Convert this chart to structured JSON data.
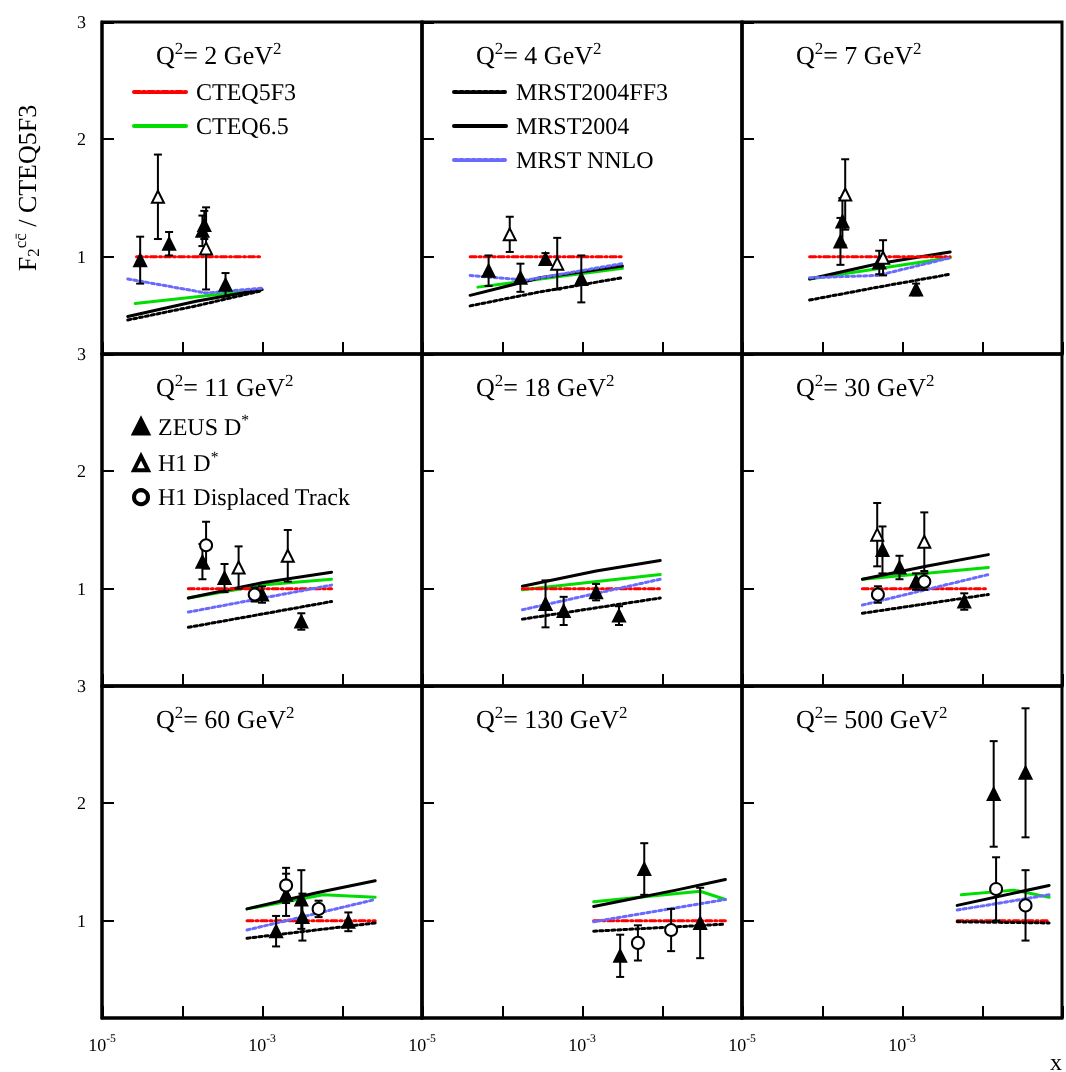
{
  "chart_data": [
    {
      "type": "line",
      "title": "Q$^{2}$= 2 GeV$^{2}$",
      "ylabel": "F$_{2}$$^{cc̄}$ / CTEQ5F3",
      "log": "x",
      "xlim": [
        1e-05,
        0.1
      ],
      "ylim": [
        0.17,
        3
      ],
      "xticks": [
        {
          "value": 1e-05,
          "label": null
        },
        {
          "value": 0.0001,
          "label": null
        },
        {
          "value": 0.001,
          "label": null
        },
        {
          "value": 0.01,
          "label": null
        },
        {
          "value": 0.1,
          "label": null
        }
      ],
      "yticks": [
        1,
        2,
        3
      ],
      "tick_labels": "y",
      "legend": "top left",
      "series": [
        {
          "name": "CTEQ5F3",
          "color": "#ff0000",
          "line_style": "dashed",
          "marker": "none",
          "x": [
            2.7e-05,
            0.001
          ],
          "values": [
            1,
            1
          ]
        },
        {
          "name": "CTEQ6.5",
          "color": "#00dd00",
          "line_style": "solid",
          "marker": "none",
          "x": [
            2.6e-05,
            0.001
          ],
          "values": [
            0.6,
            0.72
          ]
        },
        {
          "color": "#000000",
          "line_style": "dotted",
          "marker": "none",
          "x": [
            2.1e-05,
            0.00015,
            0.001
          ],
          "values": [
            0.46,
            0.58,
            0.71
          ]
        },
        {
          "color": "#000000",
          "line_style": "solid",
          "marker": "none",
          "x": [
            2.1e-05,
            0.00015,
            0.001
          ],
          "values": [
            0.49,
            0.62,
            0.72
          ]
        },
        {
          "color": "#6a6aff",
          "line_style": "dotted",
          "marker": "none",
          "x": [
            2.1e-05,
            0.0002,
            0.001
          ],
          "values": [
            0.81,
            0.69,
            0.73
          ]
        },
        {
          "type": "scatter",
          "color": "#000000",
          "marker": "triangle",
          "x": [
            3e-05,
            6.9e-05,
            0.00018,
            0.00019,
            0.00035
          ],
          "values": [
            0.97,
            1.11,
            1.22,
            1.27,
            0.76
          ],
          "errors": [
            0.2,
            0.1,
            0.13,
            0.12,
            0.1
          ]
        },
        {
          "type": "scatter",
          "color": "#ffffff",
          "marker": "triangle",
          "x": [
            5e-05,
            0.0002
          ],
          "values": [
            1.51,
            1.07
          ],
          "errors": [
            0.36,
            0.35
          ]
        }
      ]
    },
    {
      "type": "line",
      "title": "Q$^{2}$= 4 GeV$^{2}$",
      "log": "x",
      "xlim": [
        1e-05,
        0.1
      ],
      "ylim": [
        0.17,
        3
      ],
      "xticks": [
        {
          "value": 1e-05,
          "label": null
        },
        {
          "value": 0.0001,
          "label": null
        },
        {
          "value": 0.001,
          "label": null
        },
        {
          "value": 0.01,
          "label": null
        },
        {
          "value": 0.1,
          "label": null
        }
      ],
      "yticks": [
        1,
        2,
        3
      ],
      "tick_labels": false,
      "legend": "top left",
      "series": [
        {
          "color": "#ff0000",
          "line_style": "dashed",
          "marker": "none",
          "x": [
            4e-05,
            0.0032
          ],
          "values": [
            1,
            1
          ]
        },
        {
          "color": "#00dd00",
          "line_style": "solid",
          "marker": "none",
          "x": [
            5e-05,
            0.0032
          ],
          "values": [
            0.74,
            0.9
          ]
        },
        {
          "name": "MRST2004FF3",
          "color": "#000000",
          "line_style": "dotted",
          "marker": "none",
          "x": [
            4e-05,
            0.0003,
            0.0032
          ],
          "values": [
            0.58,
            0.7,
            0.82
          ]
        },
        {
          "name": "MRST2004",
          "color": "#000000",
          "line_style": "solid",
          "marker": "none",
          "x": [
            4e-05,
            0.0003,
            0.0032
          ],
          "values": [
            0.67,
            0.82,
            0.92
          ]
        },
        {
          "name": "MRST NNLO",
          "color": "#6a6aff",
          "line_style": "dotted",
          "marker": "none",
          "x": [
            4e-05,
            0.0002,
            0.0032
          ],
          "values": [
            0.84,
            0.8,
            0.94
          ]
        },
        {
          "type": "scatter",
          "color": "#000000",
          "marker": "triangle",
          "x": [
            6.8e-05,
            0.00017,
            0.00035,
            0.00098
          ],
          "values": [
            0.88,
            0.82,
            0.98,
            0.81
          ],
          "errors": [
            0.13,
            0.12,
            0.05,
            0.2
          ]
        },
        {
          "type": "scatter",
          "color": "#ffffff",
          "marker": "triangle",
          "x": [
            0.000125,
            0.00049
          ],
          "values": [
            1.19,
            0.94
          ],
          "errors": [
            0.15,
            0.22
          ]
        }
      ]
    },
    {
      "type": "line",
      "title": "Q$^{2}$= 7 GeV$^{2}$",
      "log": "x",
      "xlim": [
        1e-05,
        0.1
      ],
      "ylim": [
        0.17,
        3
      ],
      "xticks": [
        {
          "value": 1e-05,
          "label": null
        },
        {
          "value": 0.0001,
          "label": null
        },
        {
          "value": 0.001,
          "label": null
        },
        {
          "value": 0.01,
          "label": null
        },
        {
          "value": 0.1,
          "label": null
        }
      ],
      "yticks": [
        1,
        2,
        3
      ],
      "tick_labels": false,
      "series": [
        {
          "color": "#ff0000",
          "line_style": "dashed",
          "marker": "none",
          "x": [
            7e-05,
            0.004
          ],
          "values": [
            1,
            1
          ]
        },
        {
          "color": "#00dd00",
          "line_style": "solid",
          "marker": "none",
          "x": [
            7e-05,
            0.004
          ],
          "values": [
            0.81,
            0.99
          ]
        },
        {
          "color": "#000000",
          "line_style": "dotted",
          "marker": "none",
          "x": [
            7e-05,
            0.0005,
            0.004
          ],
          "values": [
            0.63,
            0.74,
            0.85
          ]
        },
        {
          "color": "#000000",
          "line_style": "solid",
          "marker": "none",
          "x": [
            7e-05,
            0.0005,
            0.004
          ],
          "values": [
            0.81,
            0.94,
            1.04
          ]
        },
        {
          "color": "#6a6aff",
          "line_style": "dotted",
          "marker": "none",
          "x": [
            7e-05,
            0.0005,
            0.004
          ],
          "values": [
            0.82,
            0.84,
            0.99
          ]
        },
        {
          "type": "scatter",
          "color": "#000000",
          "marker": "triangle",
          "x": [
            0.00017,
            0.00018,
            0.00052,
            0.0015
          ],
          "values": [
            1.13,
            1.3,
            0.95,
            0.72
          ],
          "errors": [
            0.2,
            0.2,
            0.1,
            0.05
          ]
        },
        {
          "type": "scatter",
          "color": "#ffffff",
          "marker": "triangle",
          "x": [
            0.000195,
            0.00058
          ],
          "values": [
            1.53,
            0.99
          ],
          "errors": [
            0.3,
            0.15
          ]
        }
      ]
    },
    {
      "type": "line",
      "title": "Q$^{2}$= 11 GeV$^{2}$",
      "log": "x",
      "xlim": [
        1e-05,
        0.1
      ],
      "ylim": [
        0.17,
        3
      ],
      "xticks": [
        {
          "value": 1e-05,
          "label": null
        },
        {
          "value": 0.0001,
          "label": null
        },
        {
          "value": 0.001,
          "label": null
        },
        {
          "value": 0.01,
          "label": null
        },
        {
          "value": 0.1,
          "label": null
        }
      ],
      "yticks": [
        1,
        2,
        3
      ],
      "tick_labels": "y",
      "legend": "top left",
      "series": [
        {
          "color": "#ff0000",
          "line_style": "dashed",
          "marker": "none",
          "x": [
            0.00012,
            0.0074
          ],
          "values": [
            1,
            1
          ]
        },
        {
          "color": "#00dd00",
          "line_style": "solid",
          "marker": "none",
          "x": [
            0.00012,
            0.001,
            0.0074
          ],
          "values": [
            0.92,
            1.03,
            1.08
          ]
        },
        {
          "color": "#000000",
          "line_style": "dotted",
          "marker": "none",
          "x": [
            0.00012,
            0.0074
          ],
          "values": [
            0.67,
            0.89
          ]
        },
        {
          "color": "#000000",
          "line_style": "solid",
          "marker": "none",
          "x": [
            0.00012,
            0.001,
            0.0074
          ],
          "values": [
            0.92,
            1.05,
            1.14
          ]
        },
        {
          "color": "#6a6aff",
          "line_style": "dotted",
          "marker": "none",
          "x": [
            0.00012,
            0.0074
          ],
          "values": [
            0.8,
            1.03
          ]
        },
        {
          "type": "scatter",
          "name": "ZEUS D$^{*}$",
          "color": "#000000",
          "marker": "triangle",
          "x": [
            0.00018,
            0.00034,
            0.001,
            0.0031
          ],
          "values": [
            1.23,
            1.09,
            0.95,
            0.72
          ],
          "errors": [
            0.15,
            0.12,
            0.07,
            0.07
          ]
        },
        {
          "type": "scatter",
          "name": "H1 D$^{*}$",
          "color": "#ffffff",
          "marker": "triangle",
          "x": [
            0.00051,
            0.0021
          ],
          "values": [
            1.18,
            1.28
          ],
          "errors": [
            0.18,
            0.22
          ]
        },
        {
          "type": "scatter",
          "name": "H1 Displaced Track",
          "color": "#ffffff",
          "marker": "circle",
          "x": [
            0.0002,
            0.00081
          ],
          "values": [
            1.37,
            0.95
          ],
          "errors": [
            0.2,
            0.06
          ]
        }
      ]
    },
    {
      "type": "line",
      "title": "Q$^{2}$= 18 GeV$^{2}$",
      "log": "x",
      "xlim": [
        1e-05,
        0.1
      ],
      "ylim": [
        0.17,
        3
      ],
      "xticks": [
        {
          "value": 1e-05,
          "label": null
        },
        {
          "value": 0.0001,
          "label": null
        },
        {
          "value": 0.001,
          "label": null
        },
        {
          "value": 0.01,
          "label": null
        },
        {
          "value": 0.1,
          "label": null
        }
      ],
      "yticks": [
        1,
        2,
        3
      ],
      "tick_labels": false,
      "series": [
        {
          "color": "#ff0000",
          "line_style": "dashed",
          "marker": "none",
          "x": [
            0.00018,
            0.0095
          ],
          "values": [
            1,
            1
          ]
        },
        {
          "color": "#00dd00",
          "line_style": "solid",
          "marker": "none",
          "x": [
            0.00018,
            0.0095
          ],
          "values": [
            0.99,
            1.12
          ]
        },
        {
          "color": "#000000",
          "line_style": "dotted",
          "marker": "none",
          "x": [
            0.00018,
            0.0095
          ],
          "values": [
            0.74,
            0.92
          ]
        },
        {
          "color": "#000000",
          "line_style": "solid",
          "marker": "none",
          "x": [
            0.00018,
            0.0015,
            0.0095
          ],
          "values": [
            1.02,
            1.15,
            1.24
          ]
        },
        {
          "color": "#6a6aff",
          "line_style": "dotted",
          "marker": "none",
          "x": [
            0.00018,
            0.0095
          ],
          "values": [
            0.82,
            1.08
          ]
        },
        {
          "type": "scatter",
          "color": "#000000",
          "marker": "triangle",
          "x": [
            0.00035,
            0.00059,
            0.0015,
            0.0029
          ],
          "values": [
            0.87,
            0.81,
            0.97,
            0.77
          ],
          "errors": [
            0.2,
            0.12,
            0.07,
            0.08
          ]
        }
      ]
    },
    {
      "type": "line",
      "title": "Q$^{2}$= 30 GeV$^{2}$",
      "log": "x",
      "xlim": [
        1e-05,
        0.1
      ],
      "ylim": [
        0.17,
        3
      ],
      "xticks": [
        {
          "value": 1e-05,
          "label": null
        },
        {
          "value": 0.0001,
          "label": null
        },
        {
          "value": 0.001,
          "label": null
        },
        {
          "value": 0.01,
          "label": null
        },
        {
          "value": 0.1,
          "label": null
        }
      ],
      "yticks": [
        1,
        2,
        3
      ],
      "tick_labels": false,
      "series": [
        {
          "color": "#ff0000",
          "line_style": "dashed",
          "marker": "none",
          "x": [
            0.00032,
            0.012
          ],
          "values": [
            1,
            1
          ]
        },
        {
          "color": "#00dd00",
          "line_style": "solid",
          "marker": "none",
          "x": [
            0.00032,
            0.012
          ],
          "values": [
            1.08,
            1.18
          ]
        },
        {
          "color": "#000000",
          "line_style": "dotted",
          "marker": "none",
          "x": [
            0.00032,
            0.012
          ],
          "values": [
            0.79,
            0.95
          ]
        },
        {
          "color": "#000000",
          "line_style": "solid",
          "marker": "none",
          "x": [
            0.00032,
            0.002,
            0.012
          ],
          "values": [
            1.08,
            1.19,
            1.29
          ]
        },
        {
          "color": "#6a6aff",
          "line_style": "dotted",
          "marker": "none",
          "x": [
            0.00032,
            0.012
          ],
          "values": [
            0.86,
            1.12
          ]
        },
        {
          "type": "scatter",
          "color": "#000000",
          "marker": "triangle",
          "x": [
            0.00057,
            0.00093,
            0.0015,
            0.006
          ],
          "values": [
            1.33,
            1.18,
            1.06,
            0.89
          ],
          "errors": [
            0.2,
            0.1,
            0.07,
            0.07
          ]
        },
        {
          "type": "scatter",
          "color": "#ffffff",
          "marker": "triangle",
          "x": [
            0.00049,
            0.0019
          ],
          "values": [
            1.46,
            1.4
          ],
          "errors": [
            0.27,
            0.25
          ]
        },
        {
          "type": "scatter",
          "color": "#ffffff",
          "marker": "circle",
          "x": [
            0.0005,
            0.0019
          ],
          "values": [
            0.95,
            1.06
          ],
          "errors": [
            0.07,
            0.07
          ]
        }
      ]
    },
    {
      "type": "line",
      "title": "Q$^{2}$= 60 GeV$^{2}$",
      "log": "x",
      "xlim": [
        1e-05,
        0.1
      ],
      "ylim": [
        0.17,
        3
      ],
      "xticks": [
        {
          "value": 1e-05,
          "label": "10$^{-5}$"
        },
        {
          "value": 0.0001,
          "label": null
        },
        {
          "value": 0.001,
          "label": "10$^{-3}$"
        },
        {
          "value": 0.01,
          "label": null
        },
        {
          "value": 0.1,
          "label": null
        }
      ],
      "yticks": [
        1,
        2,
        3
      ],
      "series": [
        {
          "color": "#ff0000",
          "line_style": "dashed",
          "marker": "none",
          "x": [
            0.00065,
            0.026
          ],
          "values": [
            1,
            1
          ]
        },
        {
          "color": "#00dd00",
          "line_style": "solid",
          "marker": "none",
          "x": [
            0.00065,
            0.0058,
            0.026
          ],
          "values": [
            1.1,
            1.22,
            1.2
          ]
        },
        {
          "color": "#000000",
          "line_style": "dotted",
          "marker": "none",
          "x": [
            0.00065,
            0.026
          ],
          "values": [
            0.85,
            0.98
          ]
        },
        {
          "color": "#000000",
          "line_style": "solid",
          "marker": "none",
          "x": [
            0.00065,
            0.005,
            0.026
          ],
          "values": [
            1.1,
            1.24,
            1.34
          ]
        },
        {
          "color": "#6a6aff",
          "line_style": "dotted",
          "marker": "none",
          "x": [
            0.00065,
            0.026
          ],
          "values": [
            0.92,
            1.18
          ]
        },
        {
          "type": "scatter",
          "color": "#000000",
          "marker": "triangle",
          "x": [
            0.0015,
            0.002,
            0.0031,
            0.0032,
            0.012
          ],
          "values": [
            0.91,
            1.22,
            1.18,
            1.03,
            0.99
          ],
          "errors": [
            0.13,
            0.18,
            0.25,
            0.2,
            0.08
          ]
        },
        {
          "type": "scatter",
          "color": "#ffffff",
          "marker": "circle",
          "x": [
            0.002,
            0.0051
          ],
          "values": [
            1.3,
            1.1
          ],
          "errors": [
            0.15,
            0.07
          ]
        }
      ]
    },
    {
      "type": "line",
      "title": "Q$^{2}$= 130 GeV$^{2}$",
      "log": "x",
      "xlim": [
        1e-05,
        0.1
      ],
      "ylim": [
        0.17,
        3
      ],
      "xticks": [
        {
          "value": 1e-05,
          "label": "10$^{-5}$"
        },
        {
          "value": 0.0001,
          "label": null
        },
        {
          "value": 0.001,
          "label": "10$^{-3}$"
        },
        {
          "value": 0.01,
          "label": null
        },
        {
          "value": 0.1,
          "label": null
        }
      ],
      "yticks": [
        1,
        2,
        3
      ],
      "tick_labels": "x",
      "series": [
        {
          "color": "#ff0000",
          "line_style": "dashed",
          "marker": "none",
          "x": [
            0.0014,
            0.062
          ],
          "values": [
            1,
            1
          ]
        },
        {
          "color": "#00dd00",
          "line_style": "solid",
          "marker": "none",
          "x": [
            0.0014,
            0.03,
            0.062
          ],
          "values": [
            1.16,
            1.25,
            1.18
          ]
        },
        {
          "color": "#000000",
          "line_style": "dotted",
          "marker": "none",
          "x": [
            0.0014,
            0.062
          ],
          "values": [
            0.91,
            0.97
          ]
        },
        {
          "color": "#000000",
          "line_style": "solid",
          "marker": "none",
          "x": [
            0.0014,
            0.015,
            0.062
          ],
          "values": [
            1.12,
            1.26,
            1.35
          ]
        },
        {
          "color": "#6a6aff",
          "line_style": "dotted",
          "marker": "none",
          "x": [
            0.0014,
            0.062
          ],
          "values": [
            0.99,
            1.18
          ]
        },
        {
          "type": "scatter",
          "color": "#000000",
          "marker": "triangle",
          "x": [
            0.003,
            0.006,
            0.03
          ],
          "values": [
            0.7,
            1.44,
            0.98
          ],
          "errors": [
            0.18,
            0.22,
            0.3
          ]
        },
        {
          "type": "scatter",
          "color": "#ffffff",
          "marker": "circle",
          "x": [
            0.005,
            0.013
          ],
          "values": [
            0.81,
            0.92
          ],
          "errors": [
            0.15,
            0.18
          ]
        }
      ]
    },
    {
      "type": "line",
      "title": "Q$^{2}$= 500 GeV$^{2}$",
      "xlabel": "x",
      "log": "x",
      "xlim": [
        1e-05,
        0.1
      ],
      "ylim": [
        0.17,
        3
      ],
      "xticks": [
        {
          "value": 1e-05,
          "label": "10$^{-5}$"
        },
        {
          "value": 0.0001,
          "label": null
        },
        {
          "value": 0.001,
          "label": "10$^{-3}$"
        },
        {
          "value": 0.01,
          "label": null
        },
        {
          "value": 0.1,
          "label": null
        }
      ],
      "yticks": [
        1,
        2,
        3
      ],
      "tick_labels": "x",
      "series": [
        {
          "color": "#ff0000",
          "line_style": "dashed",
          "marker": "none",
          "x": [
            0.0049,
            0.069
          ],
          "values": [
            1,
            1
          ]
        },
        {
          "color": "#00dd00",
          "line_style": "solid",
          "marker": "none",
          "x": [
            0.0055,
            0.025,
            0.069
          ],
          "values": [
            1.22,
            1.26,
            1.2
          ]
        },
        {
          "color": "#000000",
          "line_style": "dotted",
          "marker": "none",
          "x": [
            0.0049,
            0.069
          ],
          "values": [
            0.99,
            0.98
          ]
        },
        {
          "color": "#000000",
          "line_style": "solid",
          "marker": "none",
          "x": [
            0.0049,
            0.069
          ],
          "values": [
            1.13,
            1.3
          ]
        },
        {
          "color": "#6a6aff",
          "line_style": "dotted",
          "marker": "none",
          "x": [
            0.0049,
            0.069
          ],
          "values": [
            1.09,
            1.22
          ]
        },
        {
          "type": "scatter",
          "color": "#000000",
          "marker": "triangle",
          "x": [
            0.014,
            0.035
          ],
          "values": [
            2.08,
            2.26
          ],
          "errors": [
            0.45,
            0.55
          ]
        },
        {
          "type": "scatter",
          "color": "#ffffff",
          "marker": "circle",
          "x": [
            0.015,
            0.035
          ],
          "values": [
            1.27,
            1.13
          ],
          "errors": [
            0.27,
            0.3
          ]
        }
      ]
    }
  ]
}
